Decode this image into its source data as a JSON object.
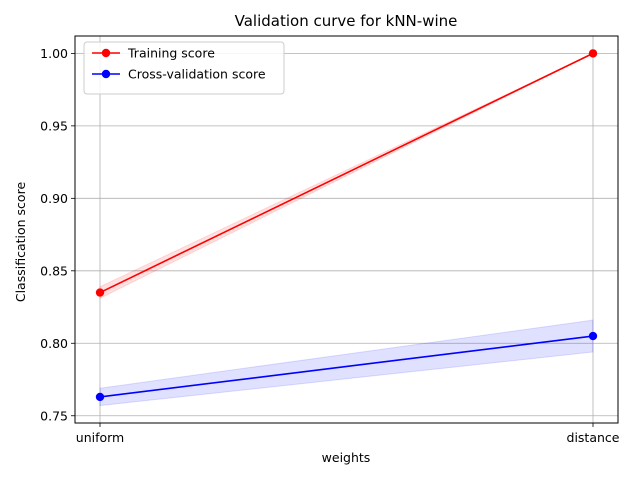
{
  "chart_data": {
    "type": "line",
    "title": "Validation curve for kNN-wine",
    "xlabel": "weights",
    "ylabel": "Classification score",
    "categories": [
      "uniform",
      "distance"
    ],
    "ylim": [
      0.745,
      1.012
    ],
    "yticks": [
      0.75,
      0.8,
      0.85,
      0.9,
      0.95,
      1.0
    ],
    "ytick_labels": [
      "0.75",
      "0.80",
      "0.85",
      "0.90",
      "0.95",
      "1.00"
    ],
    "grid": true,
    "legend_position": "top-left",
    "series": [
      {
        "name": "Training score",
        "color": "#ff0000",
        "band_color": "#ff0000",
        "values": [
          0.835,
          1.0
        ],
        "std": [
          0.004,
          0.0
        ]
      },
      {
        "name": "Cross-validation score",
        "color": "#0000ff",
        "band_color": "#0000ff",
        "values": [
          0.763,
          0.805
        ],
        "std": [
          0.006,
          0.011
        ]
      }
    ]
  }
}
